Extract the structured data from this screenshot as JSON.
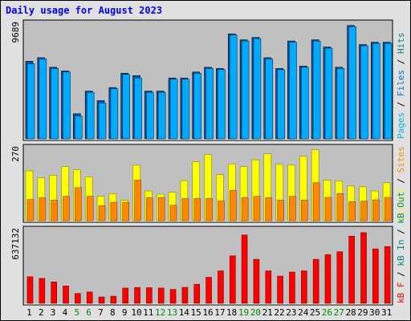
{
  "title": "Daily usage for August 2023",
  "colors": {
    "frame_bg": "#e0e0e0",
    "panel_bg": "#c0c0c0",
    "hits": "#00aaff",
    "files": "#0077cc",
    "pages": "#00bbdd",
    "visits": "#ffff00",
    "sites": "#ff8800",
    "kbin": "#dd0000",
    "kbout": "#228844",
    "kbf": "#ff0000",
    "weekend": "#008800",
    "ticks": "#000000"
  },
  "chart_data": [
    {
      "type": "bar",
      "panel": "hits-files-pages",
      "y_axis_max_label": "9689",
      "right_labels": [
        "Pages",
        "Files",
        "Hits"
      ],
      "ylim": [
        0,
        9689
      ],
      "categories": [
        "1",
        "2",
        "3",
        "4",
        "5",
        "6",
        "7",
        "8",
        "9",
        "10",
        "11",
        "12",
        "13",
        "14",
        "15",
        "16",
        "17",
        "18",
        "19",
        "20",
        "21",
        "22",
        "23",
        "24",
        "25",
        "26",
        "27",
        "28",
        "29",
        "30",
        "31"
      ],
      "weekend_days": [
        5,
        6,
        12,
        13,
        19,
        20,
        26,
        27
      ],
      "series": [
        {
          "name": "Hits",
          "values": [
            6500,
            6800,
            6000,
            5700,
            2100,
            4000,
            3200,
            4300,
            5500,
            5300,
            4000,
            4000,
            5100,
            5100,
            5600,
            6000,
            5900,
            8800,
            8300,
            8500,
            6800,
            5900,
            8200,
            6100,
            8300,
            7700,
            6000,
            9500,
            7900,
            8100,
            8100
          ]
        },
        {
          "name": "Files",
          "values": [
            6300,
            6700,
            5900,
            5600,
            1900,
            3900,
            3000,
            4200,
            5400,
            5100,
            3900,
            3900,
            5000,
            5000,
            5500,
            5900,
            5800,
            8700,
            8200,
            8400,
            6700,
            5800,
            8100,
            6000,
            8200,
            7600,
            5900,
            9400,
            7800,
            8000,
            8000
          ]
        },
        {
          "name": "Pages",
          "values": [
            0,
            0,
            0,
            0,
            0,
            0,
            0,
            0,
            0,
            0,
            0,
            0,
            0,
            0,
            0,
            0,
            0,
            0,
            0,
            0,
            0,
            0,
            0,
            0,
            0,
            0,
            0,
            0,
            0,
            0,
            0
          ]
        }
      ]
    },
    {
      "type": "bar",
      "panel": "visits-sites",
      "y_axis_max_label": "270",
      "right_labels": [
        "Visits",
        "Sites"
      ],
      "ylim": [
        0,
        270
      ],
      "categories": [
        "1",
        "2",
        "3",
        "4",
        "5",
        "6",
        "7",
        "8",
        "9",
        "10",
        "11",
        "12",
        "13",
        "14",
        "15",
        "16",
        "17",
        "18",
        "19",
        "20",
        "21",
        "22",
        "23",
        "24",
        "25",
        "26",
        "27",
        "28",
        "29",
        "30",
        "31"
      ],
      "series": [
        {
          "name": "Visits",
          "values": [
            184,
            158,
            168,
            200,
            188,
            162,
            90,
            100,
            76,
            205,
            110,
            98,
            105,
            148,
            218,
            244,
            170,
            210,
            200,
            225,
            247,
            208,
            206,
            238,
            262,
            150,
            147,
            128,
            125,
            110,
            140
          ]
        },
        {
          "name": "Sites",
          "values": [
            78,
            85,
            76,
            90,
            122,
            90,
            55,
            68,
            68,
            150,
            85,
            85,
            57,
            82,
            82,
            82,
            73,
            112,
            85,
            90,
            85,
            76,
            90,
            76,
            140,
            86,
            100,
            70,
            72,
            77,
            86
          ]
        }
      ]
    },
    {
      "type": "bar",
      "panel": "kbytes",
      "y_axis_max_label": "637132",
      "right_labels": [
        "kB F",
        "kB In",
        "kB Out"
      ],
      "ylim": [
        0,
        637132
      ],
      "categories": [
        "1",
        "2",
        "3",
        "4",
        "5",
        "6",
        "7",
        "8",
        "9",
        "10",
        "11",
        "12",
        "13",
        "14",
        "15",
        "16",
        "17",
        "18",
        "19",
        "20",
        "21",
        "22",
        "23",
        "24",
        "25",
        "26",
        "27",
        "28",
        "29",
        "30",
        "31"
      ],
      "series": [
        {
          "name": "kB F",
          "values": [
            0,
            0,
            0,
            0,
            0,
            0,
            0,
            0,
            0,
            0,
            0,
            0,
            0,
            0,
            0,
            0,
            0,
            0,
            0,
            0,
            0,
            0,
            0,
            0,
            0,
            0,
            0,
            0,
            0,
            0,
            0
          ]
        },
        {
          "name": "kB In",
          "values": [
            0,
            0,
            0,
            0,
            0,
            0,
            0,
            0,
            0,
            0,
            0,
            0,
            0,
            0,
            0,
            0,
            0,
            0,
            0,
            0,
            0,
            0,
            0,
            0,
            0,
            0,
            0,
            0,
            0,
            0,
            0
          ]
        },
        {
          "name": "kB Out",
          "values": [
            230000,
            215000,
            185000,
            150000,
            85000,
            98000,
            55000,
            62000,
            132000,
            137000,
            135000,
            132000,
            120000,
            138000,
            165000,
            225000,
            280000,
            410000,
            590000,
            380000,
            280000,
            235000,
            270000,
            280000,
            380000,
            420000,
            445000,
            580000,
            610000,
            470000,
            490000
          ]
        }
      ]
    }
  ]
}
